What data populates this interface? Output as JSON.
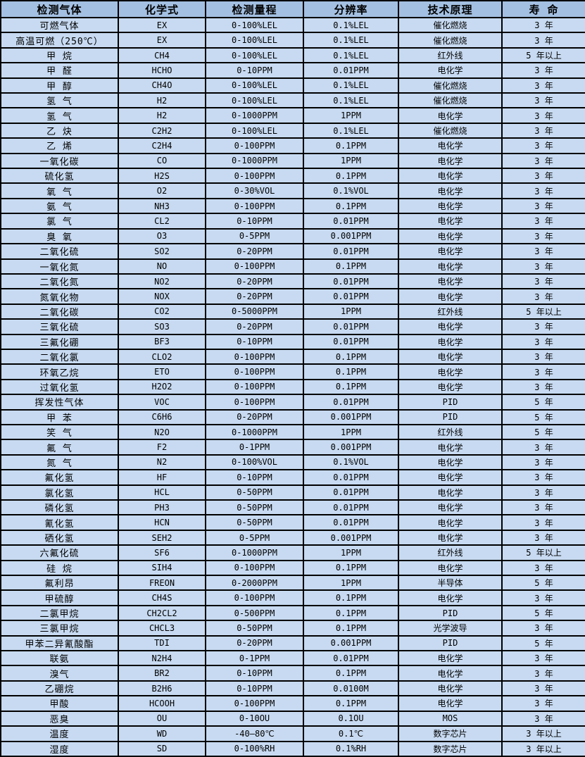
{
  "colors": {
    "header_bg": "#a3c0e2",
    "row_bg": "#c7daf1",
    "border": "#000000",
    "text": "#000000"
  },
  "table": {
    "columns": [
      "检测气体",
      "化学式",
      "检测量程",
      "分辨率",
      "技术原理",
      "寿 命"
    ],
    "column_keys": [
      "gas",
      "formula",
      "range",
      "resolution",
      "principle",
      "lifespan"
    ],
    "rows": [
      [
        "可燃气体",
        "EX",
        "0-100%LEL",
        "0.1%LEL",
        "催化燃烧",
        "3 年"
      ],
      [
        "高温可燃（250℃）",
        "EX",
        "0-100%LEL",
        "0.1%LEL",
        "催化燃烧",
        "3 年"
      ],
      [
        "甲 烷",
        "CH4",
        "0-100%LEL",
        "0.1%LEL",
        "红外线",
        "5 年以上"
      ],
      [
        "甲 醛",
        "HCHO",
        "0-10PPM",
        "0.01PPM",
        "电化学",
        "3 年"
      ],
      [
        "甲 醇",
        "CH4O",
        "0-100%LEL",
        "0.1%LEL",
        "催化燃烧",
        "3 年"
      ],
      [
        "氢 气",
        "H2",
        "0-100%LEL",
        "0.1%LEL",
        "催化燃烧",
        "3 年"
      ],
      [
        "氢 气",
        "H2",
        "0-1000PPM",
        "1PPM",
        "电化学",
        "3 年"
      ],
      [
        "乙 炔",
        "C2H2",
        "0-100%LEL",
        "0.1%LEL",
        "催化燃烧",
        "3 年"
      ],
      [
        "乙 烯",
        "C2H4",
        "0-100PPM",
        "0.1PPM",
        "电化学",
        "3 年"
      ],
      [
        "一氧化碳",
        "CO",
        "0-1000PPM",
        "1PPM",
        "电化学",
        "3 年"
      ],
      [
        "硫化氢",
        "H2S",
        "0-100PPM",
        "0.1PPM",
        "电化学",
        "3 年"
      ],
      [
        "氧 气",
        "O2",
        "0-30%VOL",
        "0.1%VOL",
        "电化学",
        "3 年"
      ],
      [
        "氨 气",
        "NH3",
        "0-100PPM",
        "0.1PPM",
        "电化学",
        "3 年"
      ],
      [
        "氯 气",
        "CL2",
        "0-10PPM",
        "0.01PPM",
        "电化学",
        "3 年"
      ],
      [
        "臭 氧",
        "O3",
        "0-5PPM",
        "0.001PPM",
        "电化学",
        "3 年"
      ],
      [
        "二氧化硫",
        "SO2",
        "0-20PPM",
        "0.01PPM",
        "电化学",
        "3 年"
      ],
      [
        "一氧化氮",
        "NO",
        "0-100PPM",
        "0.1PPM",
        "电化学",
        "3 年"
      ],
      [
        "二氧化氮",
        "NO2",
        "0-20PPM",
        "0.01PPM",
        "电化学",
        "3 年"
      ],
      [
        "氮氧化物",
        "NOX",
        "0-20PPM",
        "0.01PPM",
        "电化学",
        "3 年"
      ],
      [
        "二氧化碳",
        "CO2",
        "0-5000PPM",
        "1PPM",
        "红外线",
        "5 年以上"
      ],
      [
        "三氧化硫",
        "SO3",
        "0-20PPM",
        "0.01PPM",
        "电化学",
        "3 年"
      ],
      [
        "三氟化硼",
        "BF3",
        "0-10PPM",
        "0.01PPM",
        "电化学",
        "3 年"
      ],
      [
        "二氧化氯",
        "CLO2",
        "0-100PPM",
        "0.1PPM",
        "电化学",
        "3 年"
      ],
      [
        "环氧乙烷",
        "ETO",
        "0-100PPM",
        "0.1PPM",
        "电化学",
        "3 年"
      ],
      [
        "过氧化氢",
        "H2O2",
        "0-100PPM",
        "0.1PPM",
        "电化学",
        "3 年"
      ],
      [
        "挥发性气体",
        "VOC",
        "0-100PPM",
        "0.01PPM",
        "PID",
        "5 年"
      ],
      [
        "甲 苯",
        "C6H6",
        "0-20PPM",
        "0.001PPM",
        "PID",
        "5 年"
      ],
      [
        "笑 气",
        "N2O",
        "0-1000PPM",
        "1PPM",
        "红外线",
        "5 年"
      ],
      [
        "氟 气",
        "F2",
        "0-1PPM",
        "0.001PPM",
        "电化学",
        "3 年"
      ],
      [
        "氮 气",
        "N2",
        "0-100%VOL",
        "0.1%VOL",
        "电化学",
        "3 年"
      ],
      [
        "氟化氢",
        "HF",
        "0-10PPM",
        "0.01PPM",
        "电化学",
        "3 年"
      ],
      [
        "氯化氢",
        "HCL",
        "0-50PPM",
        "0.01PPM",
        "电化学",
        "3 年"
      ],
      [
        "磷化氢",
        "PH3",
        "0-50PPM",
        "0.01PPM",
        "电化学",
        "3 年"
      ],
      [
        "氰化氢",
        "HCN",
        "0-50PPM",
        "0.01PPM",
        "电化学",
        "3 年"
      ],
      [
        "硒化氢",
        "SEH2",
        "0-5PPM",
        "0.001PPM",
        "电化学",
        "3 年"
      ],
      [
        "六氟化硫",
        "SF6",
        "0-1000PPM",
        "1PPM",
        "红外线",
        "5 年以上"
      ],
      [
        "硅 烷",
        "SIH4",
        "0-100PPM",
        "0.1PPM",
        "电化学",
        "3 年"
      ],
      [
        "氟利昂",
        "FREON",
        "0-2000PPM",
        "1PPM",
        "半导体",
        "5 年"
      ],
      [
        "甲硫醇",
        "CH4S",
        "0-100PPM",
        "0.1PPM",
        "电化学",
        "3 年"
      ],
      [
        "二氯甲烷",
        "CH2CL2",
        "0-500PPM",
        "0.1PPM",
        "PID",
        "5 年"
      ],
      [
        "三氯甲烷",
        "CHCL3",
        "0-50PPM",
        "0.1PPM",
        "光学波导",
        "3 年"
      ],
      [
        "甲苯二异氰酸酯",
        "TDI",
        "0-20PPM",
        "0.001PPM",
        "PID",
        "5 年"
      ],
      [
        "联氨",
        "N2H4",
        "0-1PPM",
        "0.01PPM",
        "电化学",
        "3 年"
      ],
      [
        "溴气",
        "BR2",
        "0-10PPM",
        "0.1PPM",
        "电化学",
        "3 年"
      ],
      [
        "乙硼烷",
        "B2H6",
        "0-10PPM",
        "0.0100M",
        "电化学",
        "3 年"
      ],
      [
        "甲酸",
        "HCOOH",
        "0-100PPM",
        "0.1PPM",
        "电化学",
        "3 年"
      ],
      [
        "恶臭",
        "OU",
        "0-10OU",
        "0.1OU",
        "MOS",
        "3 年"
      ],
      [
        "温度",
        "WD",
        "-40—80℃",
        "0.1℃",
        "数字芯片",
        "3 年以上"
      ],
      [
        "湿度",
        "SD",
        "0-100%RH",
        "0.1%RH",
        "数字芯片",
        "3 年以上"
      ]
    ]
  }
}
